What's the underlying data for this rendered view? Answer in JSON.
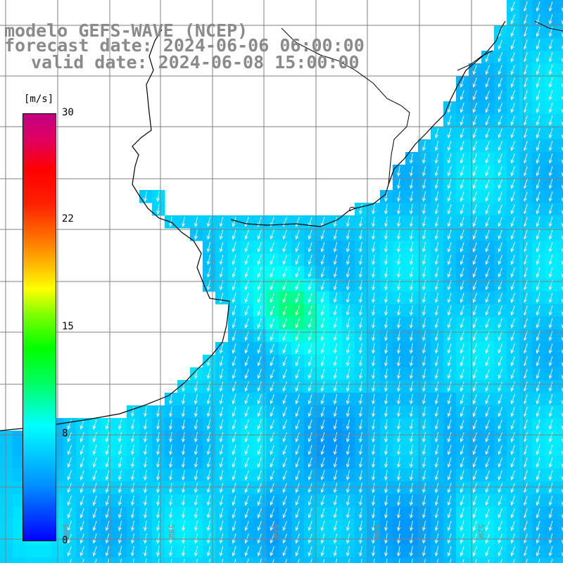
{
  "title": {
    "model": "modelo GEFS-WAVE (NCEP)",
    "forecast": "forecast date: 2024-06-06 06:00:00",
    "valid": "valid date: 2024-06-08 15:00:00"
  },
  "colorbar": {
    "unit": "[m/s]",
    "min": 0,
    "max": 30,
    "ticks": [
      "30",
      "22",
      "15",
      "8",
      "0"
    ]
  },
  "colors": {
    "land": "#ffffff",
    "coastline": "#000000",
    "grid": "#808080",
    "arrows": "#ffffff",
    "title": "#8a8a8a"
  },
  "lon_labels": [
    "60W",
    "58W",
    "56W",
    "54W",
    "52W"
  ],
  "field": {
    "variable": "wind speed",
    "arrow_direction": "toward south-southwest"
  }
}
